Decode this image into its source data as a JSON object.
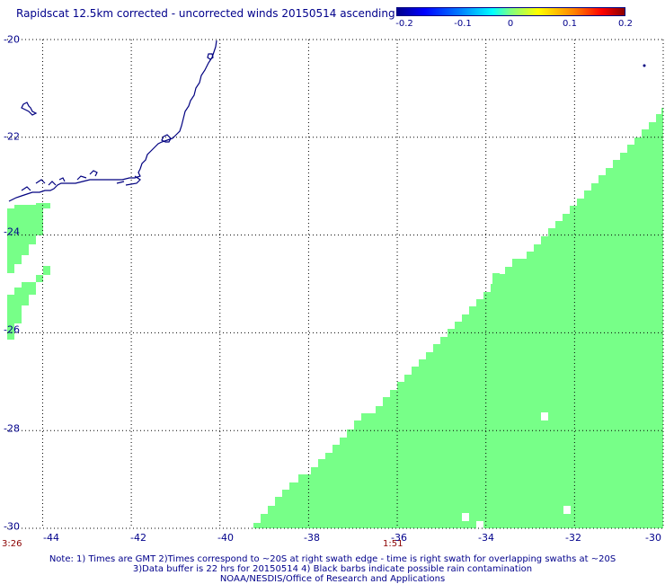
{
  "title": "Rapidscat 12.5km corrected - uncorrected winds 20150514 ascending",
  "colorbar": {
    "ticks": [
      "-0.2",
      "-0.1",
      "0",
      "0.1",
      "0.2"
    ],
    "colors": [
      "#00008b",
      "#0000ff",
      "#00ffff",
      "#80ff80",
      "#ffff00",
      "#ff8000",
      "#ff0000",
      "#8b0000"
    ]
  },
  "map": {
    "lon_range": [
      -44.8,
      -30
    ],
    "lat_range": [
      -30,
      -20
    ],
    "lon_labels": [
      "-44",
      "-42",
      "-40",
      "-38",
      "-36",
      "-34",
      "-32",
      "-30"
    ],
    "lat_labels": [
      "-20",
      "-22",
      "-24",
      "-26",
      "-28",
      "-30"
    ],
    "swath_color": "#77ff88",
    "coast_color": "#000080"
  },
  "time_labels": [
    "3:26",
    "1:51"
  ],
  "notes": [
    "Note: 1) Times are GMT 2)Times correspond to ~20S at right swath edge - time is right swath for overlapping swaths at ~20S",
    "3)Data buffer is 22 hrs for 20150514 4) Black barbs indicate possible rain contamination",
    "NOAA/NESDIS/Office of Research and Applications"
  ]
}
